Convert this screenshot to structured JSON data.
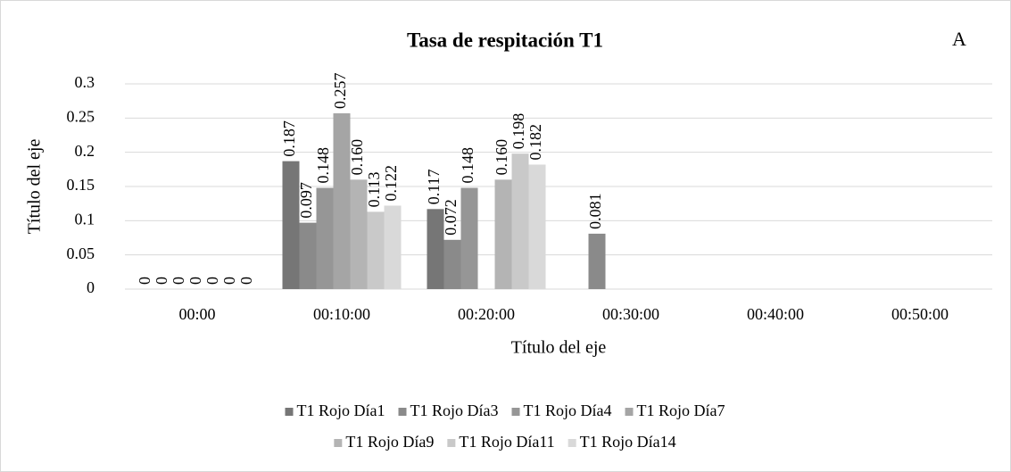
{
  "chart_data": {
    "type": "bar",
    "title": "Tasa de respitación T1",
    "annotation": "A",
    "x_label": "Título del eje",
    "y_label": "Título del eje",
    "categories": [
      "00:00",
      "00:10:00",
      "00:20:00",
      "00:30:00",
      "00:40:00",
      "00:50:00"
    ],
    "series": [
      {
        "name": "T1 Rojo Día1",
        "color": "#767676",
        "values": [
          0,
          0.187,
          0.117,
          null,
          null,
          null
        ],
        "value_labels": [
          "0",
          "0.187",
          "0.117",
          null,
          null,
          null
        ]
      },
      {
        "name": "T1 Rojo Día3",
        "color": "#8a8a8a",
        "values": [
          0,
          0.097,
          0.072,
          0.081,
          null,
          null
        ],
        "value_labels": [
          "0",
          "0.097",
          "0.072",
          "0.081",
          null,
          null
        ]
      },
      {
        "name": "T1 Rojo Día4",
        "color": "#969696",
        "values": [
          0,
          0.148,
          0.148,
          null,
          null,
          null
        ],
        "value_labels": [
          "0",
          "0.148",
          "0.148",
          null,
          null,
          null
        ]
      },
      {
        "name": "T1 Rojo Día7",
        "color": "#a5a5a5",
        "values": [
          0,
          0.257,
          null,
          null,
          null,
          null
        ],
        "value_labels": [
          "0",
          "0.257",
          null,
          null,
          null,
          null
        ]
      },
      {
        "name": "T1 Rojo Día9",
        "color": "#b4b4b4",
        "values": [
          0,
          0.16,
          0.16,
          null,
          null,
          null
        ],
        "value_labels": [
          "0",
          "0.160",
          "0.160",
          null,
          null,
          null
        ]
      },
      {
        "name": "T1 Rojo Día11",
        "color": "#c9c9c9",
        "values": [
          0,
          0.113,
          0.198,
          null,
          null,
          null
        ],
        "value_labels": [
          "0",
          "0.113",
          "0.198",
          null,
          null,
          null
        ]
      },
      {
        "name": "T1 Rojo Día14",
        "color": "#d9d9d9",
        "values": [
          0,
          0.122,
          0.182,
          null,
          null,
          null
        ],
        "value_labels": [
          "0",
          "0.122",
          "0.182",
          null,
          null,
          null
        ]
      }
    ],
    "ylim": [
      0,
      0.3
    ],
    "yticks": [
      0,
      0.05,
      0.1,
      0.15,
      0.2,
      0.25,
      0.3
    ],
    "grid": true,
    "legend": "bottom"
  }
}
